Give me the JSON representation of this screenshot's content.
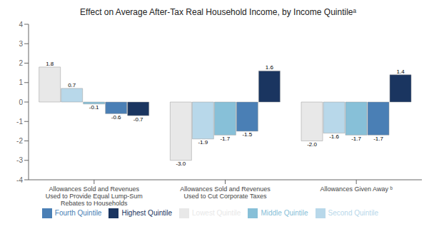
{
  "chart_data": {
    "type": "bar",
    "title": "Effect on Average After-Tax Real Household Income, by Income Quintileᵃ",
    "categories": [
      "Allowances Sold and Revenues\nUsed to Provide Equal Lump-Sum\nRebates to Households",
      "Allowances Sold and Revenues\nUsed to Cut Corporate Taxes",
      "Allowances Given Away ᵇ"
    ],
    "series": [
      {
        "name": "Lowest Quintile",
        "color": "#e8e8e8",
        "values": [
          1.8,
          -3.0,
          -2.0
        ],
        "value_labels": [
          "1.8",
          "-3.0",
          "-2.0"
        ]
      },
      {
        "name": "Second Quintile",
        "color": "#b8d8ea",
        "values": [
          0.7,
          -1.9,
          -1.6
        ],
        "value_labels": [
          "0.7",
          "-1.9",
          "-1.6"
        ]
      },
      {
        "name": "Middle Quintile",
        "color": "#87c0d8",
        "values": [
          -0.1,
          -1.7,
          -1.7
        ],
        "value_labels": [
          "-0.1",
          "-1.7",
          "-1.7"
        ]
      },
      {
        "name": "Fourth Quintile",
        "color": "#4a7fb5",
        "values": [
          -0.6,
          -1.5,
          -1.7
        ],
        "value_labels": [
          "-0.6",
          "-1.5",
          "-1.7"
        ]
      },
      {
        "name": "Highest Quintile",
        "color": "#1a3560",
        "values": [
          -0.7,
          1.6,
          1.4
        ],
        "value_labels": [
          "-0.7",
          "1.6",
          "1.4"
        ]
      }
    ],
    "ylim": [
      -4,
      4
    ],
    "yticks": [
      -4,
      -3,
      -2,
      -1,
      0,
      1,
      2,
      3,
      4
    ],
    "grid": false,
    "legend": "bottom",
    "data_labels": true
  }
}
